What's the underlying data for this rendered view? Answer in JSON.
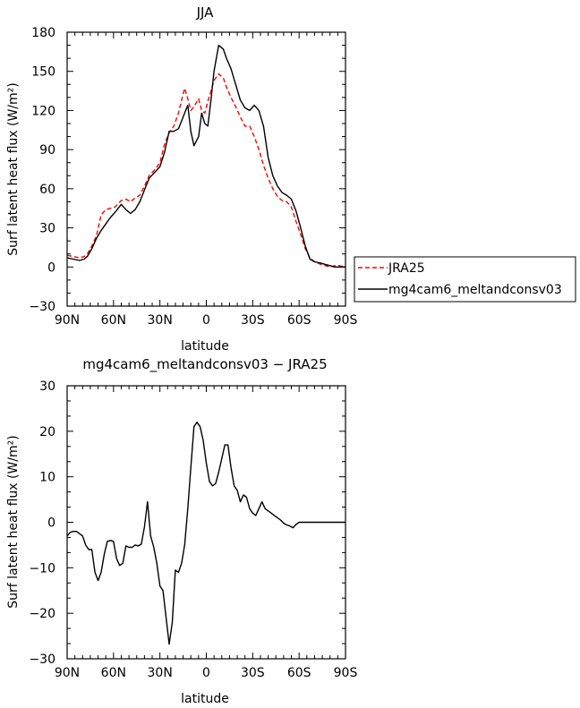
{
  "chart_data": [
    {
      "type": "line",
      "title": "JJA",
      "xlabel": "latitude",
      "ylabel": "Surf latent heat flux (W/m²)",
      "xlim": [
        90,
        -90
      ],
      "ylim": [
        -30,
        180
      ],
      "xticks": [
        90,
        60,
        30,
        0,
        -30,
        -60,
        -90
      ],
      "xtick_labels": [
        "90N",
        "60N",
        "30N",
        "0",
        "30S",
        "60S",
        "90S"
      ],
      "yticks": [
        -30,
        0,
        30,
        60,
        90,
        120,
        150,
        180
      ],
      "ytick_labels": [
        "−30",
        "0",
        "30",
        "60",
        "90",
        "120",
        "150",
        "180"
      ],
      "legend_position": "right",
      "series": [
        {
          "name": "JRA25",
          "color": "#ff0000",
          "dash": "dashed",
          "x": [
            90,
            86,
            82,
            79,
            77,
            74,
            71,
            68,
            65,
            62,
            59,
            55,
            52,
            49,
            46,
            43,
            40,
            37,
            33,
            30,
            27,
            24,
            21,
            18,
            16,
            14,
            12,
            10,
            8,
            5,
            3,
            1,
            -1,
            -3,
            -5,
            -8,
            -11,
            -13,
            -16,
            -19,
            -22,
            -25,
            -28,
            -31,
            -34,
            -37,
            -40,
            -43,
            -46,
            -49,
            -52,
            -55,
            -58,
            -61,
            -64,
            -67,
            -70,
            -74,
            -77,
            -80,
            -83,
            -86,
            -90
          ],
          "y": [
            9,
            8,
            7,
            8,
            10,
            16,
            24,
            40,
            44,
            45,
            46,
            51,
            52,
            50,
            53,
            55,
            62,
            70,
            75,
            80,
            94,
            103,
            108,
            118,
            128,
            137,
            129,
            120,
            123,
            129,
            120,
            118,
            127,
            135,
            143,
            148,
            145,
            138,
            130,
            123,
            115,
            108,
            108,
            100,
            90,
            78,
            68,
            60,
            54,
            51,
            50,
            46,
            35,
            25,
            14,
            7,
            4,
            2,
            1,
            0,
            1,
            1,
            0
          ]
        },
        {
          "name": "mg4cam6_meltandconsv03",
          "color": "#000000",
          "dash": "solid",
          "x": [
            90,
            86,
            82,
            79,
            77,
            74,
            71,
            68,
            65,
            62,
            59,
            55,
            52,
            49,
            46,
            43,
            40,
            37,
            33,
            30,
            27,
            24,
            21,
            18,
            16,
            14,
            12,
            10,
            8,
            5,
            3,
            1,
            -1,
            -3,
            -5,
            -8,
            -11,
            -13,
            -16,
            -19,
            -22,
            -25,
            -28,
            -31,
            -34,
            -37,
            -40,
            -43,
            -46,
            -49,
            -52,
            -55,
            -58,
            -61,
            -64,
            -67,
            -70,
            -74,
            -77,
            -80,
            -83,
            -86,
            -90
          ],
          "y": [
            7,
            6,
            5,
            6,
            8,
            14,
            22,
            28,
            33,
            38,
            42,
            48,
            44,
            41,
            44,
            50,
            59,
            68,
            73,
            77,
            88,
            104,
            104,
            106,
            112,
            118,
            124,
            104,
            93,
            100,
            118,
            110,
            108,
            128,
            150,
            170,
            167,
            160,
            152,
            140,
            128,
            122,
            120,
            124,
            120,
            108,
            84,
            70,
            62,
            57,
            55,
            52,
            43,
            30,
            16,
            6,
            4,
            3,
            2,
            1,
            0,
            0,
            0
          ]
        }
      ]
    },
    {
      "type": "line",
      "title": "mg4cam6_meltandconsv03 − JRA25",
      "xlabel": "latitude",
      "ylabel": "Surf latent heat flux (W/m²)",
      "xlim": [
        90,
        -90
      ],
      "ylim": [
        -30,
        30
      ],
      "xticks": [
        90,
        60,
        30,
        0,
        -30,
        -60,
        -90
      ],
      "xtick_labels": [
        "90N",
        "60N",
        "30N",
        "0",
        "30S",
        "60S",
        "90S"
      ],
      "yticks": [
        -30,
        -20,
        -10,
        0,
        10,
        20,
        30
      ],
      "ytick_labels": [
        "−30",
        "−20",
        "−10",
        "0",
        "10",
        "20",
        "30"
      ],
      "series": [
        {
          "color": "#000000",
          "dash": "solid",
          "x": [
            90,
            88,
            86,
            84,
            82,
            80,
            78,
            76,
            74,
            72,
            70,
            68,
            66,
            64,
            62,
            60,
            58,
            56,
            54,
            52,
            50,
            48,
            46,
            44,
            42,
            40,
            38,
            36,
            34,
            32,
            30,
            28,
            26,
            24,
            22,
            20,
            18,
            16,
            14,
            12,
            10,
            8,
            6,
            4,
            2,
            0,
            -2,
            -4,
            -6,
            -8,
            -10,
            -12,
            -14,
            -16,
            -18,
            -20,
            -22,
            -24,
            -26,
            -28,
            -30,
            -32,
            -34,
            -36,
            -38,
            -40,
            -42,
            -44,
            -46,
            -48,
            -50,
            -52,
            -54,
            -56,
            -58,
            -60,
            -62,
            -64,
            -66,
            -68,
            -70,
            -72,
            -74,
            -76,
            -78,
            -80,
            -82,
            -84,
            -86,
            -88,
            -90
          ],
          "y": [
            -3,
            -2.2,
            -2,
            -2,
            -2.5,
            -3,
            -5,
            -6,
            -6,
            -11,
            -12.8,
            -11,
            -7,
            -4.2,
            -4,
            -4.2,
            -8,
            -9.5,
            -9,
            -5.2,
            -5.5,
            -5.5,
            -5,
            -5.2,
            -4.8,
            -1,
            4.5,
            -3,
            -5.5,
            -9,
            -14,
            -15,
            -21,
            -26.8,
            -22,
            -10.5,
            -11,
            -9,
            -5,
            3,
            12,
            21,
            22,
            21,
            18,
            13,
            9,
            8,
            8.5,
            11,
            14,
            17,
            17,
            12,
            8,
            7,
            4.5,
            6,
            5.5,
            3,
            2,
            1.5,
            3,
            4.5,
            3,
            2.5,
            2,
            1.5,
            1,
            0.5,
            -0.2,
            -0.6,
            -0.8,
            -1.2,
            -0.5,
            0,
            0,
            0,
            0,
            0,
            0,
            0,
            0,
            0,
            0,
            0,
            0,
            0,
            0,
            0,
            0
          ]
        }
      ]
    }
  ]
}
